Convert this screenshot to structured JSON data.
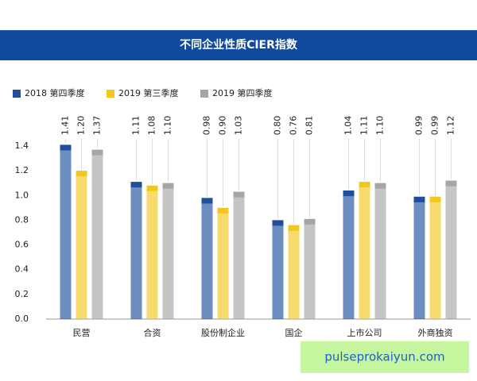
{
  "chart_data": {
    "type": "bar",
    "title": "不同企业性质CIER指数",
    "categories": [
      "民营",
      "合资",
      "股份制企业",
      "国企",
      "上市公司",
      "外商独资"
    ],
    "series": [
      {
        "name": "2018 第四季度",
        "color": "#1f4e9c",
        "values": [
          1.41,
          1.11,
          0.98,
          0.8,
          1.04,
          0.99
        ],
        "value_labels": [
          "1.41",
          "1.11",
          "0.98",
          "0.80",
          "1.04",
          "0.99"
        ]
      },
      {
        "name": "2019 第三季度",
        "color": "#f2c71f",
        "values": [
          1.2,
          1.08,
          0.9,
          0.76,
          1.11,
          0.99
        ],
        "value_labels": [
          "1.20",
          "1.08",
          "0.90",
          "0.76",
          "1.11",
          "0.99"
        ]
      },
      {
        "name": "2019 第四季度",
        "color": "#a6a6a6",
        "values": [
          1.37,
          1.1,
          1.03,
          0.81,
          1.1,
          1.12
        ],
        "value_labels": [
          "1.37",
          "1.10",
          "1.03",
          "0.81",
          "1.10",
          "1.12"
        ]
      }
    ],
    "ylim": [
      0,
      1.4
    ],
    "yticks": [
      {
        "value": 0,
        "label": "0.0"
      },
      0.2,
      0.4,
      0.6,
      0.8,
      {
        "value": 1,
        "label": "1.0"
      },
      1.2,
      1.4
    ],
    "watermark": "pulseprokaiyun.com"
  }
}
